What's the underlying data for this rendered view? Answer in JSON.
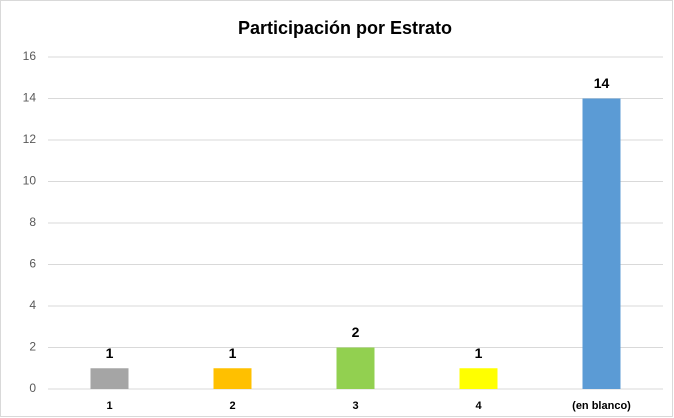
{
  "chart_data": {
    "type": "bar",
    "title": "Participación por Estrato",
    "categories": [
      "1",
      "2",
      "3",
      "4",
      "(en blanco)"
    ],
    "values": [
      1,
      1,
      2,
      1,
      14
    ],
    "colors": [
      "#a5a5a5",
      "#ffc000",
      "#92d050",
      "#ffff00",
      "#5b9bd5"
    ],
    "ylim": [
      0,
      16
    ],
    "yticks": [
      0,
      2,
      4,
      6,
      8,
      10,
      12,
      14,
      16
    ],
    "grid": true
  }
}
